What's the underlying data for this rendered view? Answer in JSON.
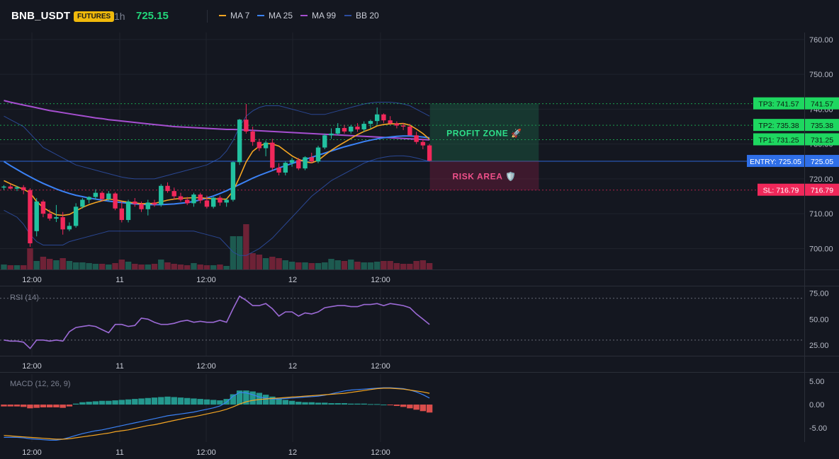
{
  "header": {
    "symbol": "BNB_USDT",
    "badge": "FUTURES",
    "timeframe": "1h",
    "price": "725.15",
    "legend": [
      {
        "label": "MA 7",
        "color": "#f5a623"
      },
      {
        "label": "MA 25",
        "color": "#3b82f6"
      },
      {
        "label": "MA 99",
        "color": "#a64fd0"
      },
      {
        "label": "BB 20",
        "color": "#2c4da0"
      }
    ]
  },
  "colors": {
    "up": "#22c1a0",
    "down": "#f0285a",
    "price": "#22d67a",
    "badge_bg": "#f0b90b",
    "tp": "#1ed760",
    "entry": "#2f6fe8",
    "sl": "#f0285a",
    "rsi": "#9c6ad6",
    "macd_line": "#3b82f6",
    "signal_line": "#f5a623"
  },
  "chart_data": [
    {
      "type": "candlestick",
      "ylim": [
        694,
        762
      ],
      "yticks": [
        "760.00",
        "750.00",
        "740.00",
        "730.00",
        "720.00",
        "710.00",
        "700.00"
      ],
      "ytick_values": [
        760,
        750,
        740,
        730,
        720,
        710,
        700
      ],
      "xticks": [
        "12:00",
        "11",
        "12:00",
        "12",
        "12:00"
      ],
      "levels": [
        {
          "name": "TP3",
          "label": "TP3: 741.57",
          "value_label": "741.57",
          "value": 741.57
        },
        {
          "name": "TP2",
          "label": "TP2: 735.38",
          "value_label": "735.38",
          "value": 735.38
        },
        {
          "name": "TP1",
          "label": "TP1: 731.25",
          "value_label": "731.25",
          "value": 731.25
        },
        {
          "name": "ENTRY",
          "label": "ENTRY: 725.05",
          "value_label": "725.05",
          "value": 725.05
        },
        {
          "name": "SL",
          "label": "SL: 716.79",
          "value_label": "716.79",
          "value": 716.79
        }
      ],
      "zones": [
        {
          "label": "PROFIT ZONE 🚀",
          "from": 725.05,
          "to": 741.57
        },
        {
          "label": "RISK AREA 🛡️",
          "from": 716.79,
          "to": 725.05
        }
      ],
      "candles": [
        [
          717.5,
          718.2,
          716.8,
          717.8
        ],
        [
          717.8,
          718.5,
          717.0,
          717.2
        ],
        [
          717.2,
          718.0,
          716.5,
          717.6
        ],
        [
          717.6,
          718.2,
          715.6,
          716.8
        ],
        [
          716.8,
          717.3,
          700.5,
          701.5
        ],
        [
          705.0,
          714.5,
          703.5,
          713.5
        ],
        [
          713.5,
          714.0,
          709.0,
          710.0
        ],
        [
          710.0,
          711.2,
          708.0,
          708.6
        ],
        [
          708.6,
          712.5,
          707.6,
          709.0
        ],
        [
          709.0,
          710.5,
          704.0,
          705.5
        ],
        [
          705.5,
          707.5,
          705.0,
          706.5
        ],
        [
          706.5,
          713.0,
          706.0,
          712.0
        ],
        [
          712.0,
          714.5,
          711.5,
          714.0
        ],
        [
          714.0,
          715.0,
          713.0,
          714.8
        ],
        [
          714.8,
          717.0,
          714.0,
          716.0
        ],
        [
          716.0,
          716.5,
          713.5,
          714.2
        ],
        [
          714.2,
          716.5,
          713.6,
          715.8
        ],
        [
          715.8,
          716.2,
          711.0,
          711.5
        ],
        [
          711.5,
          713.5,
          707.5,
          708.2
        ],
        [
          708.2,
          714.0,
          707.5,
          713.5
        ],
        [
          713.5,
          714.5,
          712.0,
          712.8
        ],
        [
          712.8,
          713.5,
          710.5,
          711.3
        ],
        [
          711.3,
          714.0,
          709.5,
          713.2
        ],
        [
          713.2,
          714.0,
          712.0,
          712.6
        ],
        [
          712.6,
          718.5,
          712.0,
          718.0
        ],
        [
          718.0,
          719.0,
          716.0,
          716.5
        ],
        [
          716.5,
          717.5,
          714.0,
          715.0
        ],
        [
          715.0,
          716.0,
          713.5,
          714.0
        ],
        [
          714.0,
          714.8,
          712.5,
          713.0
        ],
        [
          713.0,
          716.0,
          712.0,
          715.5
        ],
        [
          715.5,
          716.0,
          713.0,
          713.8
        ],
        [
          713.8,
          715.2,
          711.5,
          712.0
        ],
        [
          712.0,
          714.8,
          711.5,
          714.6
        ],
        [
          714.6,
          715.2,
          712.3,
          713.2
        ],
        [
          713.2,
          714.5,
          712.0,
          714.0
        ],
        [
          714.0,
          725.0,
          713.5,
          724.8
        ],
        [
          724.8,
          737.2,
          724.0,
          737.0
        ],
        [
          737.0,
          741.5,
          733.0,
          733.6
        ],
        [
          733.6,
          735.0,
          729.5,
          730.6
        ],
        [
          730.6,
          731.5,
          728.0,
          728.8
        ],
        [
          728.8,
          731.0,
          726.5,
          730.4
        ],
        [
          730.4,
          731.5,
          722.5,
          723.2
        ],
        [
          723.2,
          724.5,
          721.0,
          721.8
        ],
        [
          721.8,
          725.0,
          721.0,
          724.6
        ],
        [
          724.6,
          726.0,
          723.5,
          725.4
        ],
        [
          725.4,
          726.0,
          722.5,
          723.0
        ],
        [
          723.0,
          726.5,
          722.5,
          726.2
        ],
        [
          726.2,
          727.5,
          724.5,
          725.0
        ],
        [
          725.0,
          729.5,
          724.5,
          729.0
        ],
        [
          729.0,
          733.0,
          728.5,
          732.5
        ],
        [
          732.5,
          734.5,
          731.5,
          733.0
        ],
        [
          733.0,
          736.0,
          732.5,
          734.6
        ],
        [
          734.6,
          735.5,
          733.0,
          733.6
        ],
        [
          733.6,
          735.5,
          733.0,
          735.0
        ],
        [
          735.0,
          736.0,
          733.5,
          734.2
        ],
        [
          734.2,
          736.5,
          733.5,
          735.8
        ],
        [
          735.8,
          737.0,
          734.5,
          736.6
        ],
        [
          736.6,
          740.5,
          735.5,
          738.5
        ],
        [
          738.5,
          738.8,
          736.0,
          736.8
        ],
        [
          736.8,
          738.0,
          735.5,
          735.9
        ],
        [
          735.9,
          736.5,
          734.5,
          735.3
        ],
        [
          735.3,
          736.0,
          734.0,
          735.0
        ],
        [
          735.0,
          735.8,
          732.5,
          732.5
        ],
        [
          732.5,
          733.5,
          730.0,
          730.6
        ],
        [
          730.6,
          731.5,
          728.5,
          729.6
        ],
        [
          729.6,
          730.0,
          725.0,
          725.2
        ]
      ],
      "volumes": [
        7,
        6,
        6,
        6,
        30,
        12,
        18,
        15,
        13,
        16,
        12,
        10,
        10,
        9,
        8,
        8,
        7,
        9,
        14,
        11,
        8,
        7,
        7,
        8,
        14,
        10,
        8,
        7,
        6,
        9,
        7,
        6,
        6,
        7,
        5,
        47,
        47,
        64,
        23,
        21,
        16,
        18,
        16,
        13,
        11,
        10,
        10,
        9,
        9,
        10,
        15,
        13,
        12,
        14,
        11,
        10,
        10,
        11,
        12,
        12,
        9,
        8,
        8,
        12,
        13,
        9
      ],
      "ma7": [
        719.5,
        718.6,
        717.8,
        717.0,
        716.0,
        713.5,
        711.8,
        710.6,
        709.7,
        709.5,
        709.8,
        710.8,
        711.8,
        712.6,
        713.2,
        713.7,
        714.2,
        714.0,
        713.6,
        713.3,
        713.1,
        712.9,
        712.9,
        713.0,
        713.4,
        713.9,
        714.2,
        714.4,
        714.5,
        714.6,
        714.6,
        714.4,
        714.3,
        714.2,
        714.2,
        716.5,
        720.5,
        724.9,
        727.9,
        729.4,
        730.2,
        730.0,
        729.4,
        728.0,
        726.6,
        725.6,
        724.9,
        724.6,
        725.3,
        726.8,
        728.2,
        729.4,
        730.5,
        731.6,
        732.7,
        733.6,
        734.3,
        735.2,
        735.6,
        735.8,
        735.8,
        735.9,
        735.4,
        734.3,
        733.0,
        731.4
      ],
      "ma25": [
        725.0,
        723.8,
        722.7,
        721.6,
        720.6,
        719.6,
        718.7,
        717.9,
        717.1,
        716.4,
        715.8,
        715.3,
        714.9,
        714.5,
        714.2,
        713.9,
        713.6,
        713.4,
        713.2,
        713.0,
        712.8,
        712.7,
        712.6,
        712.6,
        712.6,
        712.7,
        712.8,
        713.0,
        713.2,
        713.5,
        714.0,
        714.5,
        715.1,
        715.8,
        716.6,
        717.5,
        718.4,
        719.3,
        720.2,
        721.0,
        721.7,
        722.4,
        723.1,
        723.8,
        724.4,
        725.0,
        725.6,
        726.2,
        726.8,
        727.4,
        728.0,
        728.6,
        729.2,
        729.7,
        730.2,
        730.7,
        731.1,
        731.5,
        731.8,
        732.0,
        732.2,
        732.3,
        732.3,
        732.2,
        732.0,
        731.8
      ],
      "ma99": [
        742.5,
        742.0,
        741.6,
        741.2,
        740.8,
        740.4,
        740.0,
        739.6,
        739.3,
        739.0,
        738.7,
        738.4,
        738.1,
        737.8,
        737.5,
        737.3,
        737.0,
        736.8,
        736.6,
        736.4,
        736.2,
        736.0,
        735.8,
        735.6,
        735.4,
        735.2,
        735.0,
        734.9,
        734.8,
        734.7,
        734.6,
        734.5,
        734.4,
        734.3,
        734.2,
        734.2,
        734.1,
        734.0,
        733.9,
        733.8,
        733.7,
        733.6,
        733.5,
        733.4,
        733.3,
        733.2,
        733.1,
        733.0,
        732.9,
        732.8,
        732.7,
        732.6,
        732.5,
        732.4,
        732.3,
        732.2,
        732.1,
        732.0,
        731.9,
        731.8,
        731.7,
        731.6,
        731.5,
        731.4,
        731.3,
        731.2
      ],
      "bb_upper": [
        738,
        737,
        736,
        735,
        733,
        731,
        729,
        728,
        727,
        726,
        725,
        724,
        723.5,
        723,
        722.5,
        722,
        721.5,
        721,
        720.5,
        720.2,
        720,
        720,
        720,
        720,
        720.5,
        721,
        721.5,
        722,
        722.5,
        723,
        723.5,
        724,
        725,
        726,
        728,
        731,
        735,
        738,
        739.5,
        740.5,
        741,
        741,
        741,
        740.5,
        740,
        739.5,
        739,
        738.5,
        738.5,
        738.5,
        739,
        739.5,
        740,
        740.5,
        741,
        741.5,
        741.8,
        742,
        742,
        742,
        741.8,
        741.5,
        741,
        740,
        739,
        738
      ],
      "bb_lower": [
        711,
        710,
        709,
        707,
        704,
        702,
        701,
        701,
        701,
        701,
        702,
        702.5,
        703,
        703.5,
        704,
        704.5,
        705,
        705,
        705,
        705,
        705,
        705,
        705,
        705,
        705,
        705,
        705,
        705,
        705,
        705,
        704.5,
        704,
        703.5,
        703,
        701,
        699,
        698,
        698,
        699,
        700,
        701.5,
        703,
        705,
        707,
        709,
        711,
        713,
        715,
        716.5,
        718,
        719.5,
        720.5,
        721.5,
        722.5,
        723.5,
        724.5,
        725.2,
        725.8,
        726.2,
        726.5,
        726.6,
        726.6,
        726.4,
        726.0,
        725.5,
        725.0
      ]
    },
    {
      "type": "line",
      "title": "RSI (14)",
      "ylim": [
        15,
        80
      ],
      "yticks": [
        "75.00",
        "50.00",
        "25.00"
      ],
      "ytick_values": [
        75,
        50,
        25
      ],
      "hlines": [
        70,
        30
      ],
      "xticks": [
        "12:00",
        "11",
        "12:00",
        "12",
        "12:00"
      ],
      "values": [
        30,
        29,
        29,
        28,
        22,
        30,
        30,
        29,
        30,
        29,
        38,
        42,
        43,
        44,
        43,
        40,
        37,
        45,
        45,
        43,
        44,
        51,
        50,
        47,
        45,
        45,
        46,
        48,
        49,
        47,
        48,
        47,
        47,
        49,
        47,
        60,
        72,
        68,
        63,
        63,
        65,
        60,
        53,
        57,
        57,
        53,
        56,
        55,
        57,
        61,
        62,
        63,
        63,
        62,
        62,
        64,
        64,
        65,
        63,
        65,
        64,
        63,
        61,
        55,
        50,
        45
      ]
    },
    {
      "type": "bar-line",
      "title": "MACD (12, 26, 9)",
      "ylim": [
        -8,
        6.5
      ],
      "yticks": [
        "5.00",
        "0.00",
        "-5.00"
      ],
      "ytick_values": [
        5,
        0,
        -5
      ],
      "xticks": [
        "12:00",
        "11",
        "12:00",
        "12",
        "12:00"
      ],
      "histogram": [
        -0.4,
        -0.4,
        -0.4,
        -0.5,
        -0.8,
        -0.7,
        -0.6,
        -0.6,
        -0.6,
        -0.7,
        -0.4,
        0.2,
        0.5,
        0.6,
        0.7,
        0.8,
        0.8,
        0.9,
        1.0,
        1.1,
        1.2,
        1.3,
        1.4,
        1.5,
        1.6,
        1.7,
        1.6,
        1.5,
        1.4,
        1.3,
        1.2,
        1.1,
        1.0,
        0.9,
        1.2,
        2.2,
        3.0,
        3.0,
        2.8,
        2.5,
        2.1,
        1.7,
        1.3,
        1.0,
        0.8,
        0.6,
        0.5,
        0.5,
        0.4,
        0.4,
        0.3,
        0.3,
        0.3,
        0.2,
        0.2,
        0.2,
        0.1,
        0.1,
        0.0,
        -0.1,
        -0.3,
        -0.5,
        -0.8,
        -1.1,
        -1.4,
        -1.7
      ],
      "macd": [
        -7.0,
        -7.0,
        -7.0,
        -7.1,
        -7.3,
        -7.4,
        -7.5,
        -7.6,
        -7.6,
        -7.4,
        -7.0,
        -6.6,
        -6.2,
        -5.9,
        -5.6,
        -5.4,
        -5.1,
        -4.8,
        -4.5,
        -4.2,
        -3.9,
        -3.6,
        -3.3,
        -3.0,
        -2.7,
        -2.4,
        -2.2,
        -2.0,
        -1.8,
        -1.6,
        -1.3,
        -1.0,
        -0.7,
        -0.3,
        0.5,
        1.8,
        2.6,
        2.5,
        2.1,
        1.6,
        1.4,
        1.2,
        1.2,
        1.3,
        1.4,
        1.5,
        1.6,
        1.7,
        1.8,
        2.0,
        2.3,
        2.6,
        2.9,
        3.1,
        3.2,
        3.3,
        3.4,
        3.5,
        3.6,
        3.6,
        3.5,
        3.4,
        3.1,
        2.7,
        2.1,
        1.4
      ],
      "signal": [
        -6.6,
        -6.7,
        -6.8,
        -6.9,
        -7.0,
        -7.1,
        -7.2,
        -7.3,
        -7.4,
        -7.4,
        -7.3,
        -7.1,
        -6.9,
        -6.7,
        -6.5,
        -6.3,
        -6.1,
        -5.8,
        -5.6,
        -5.4,
        -5.1,
        -4.8,
        -4.5,
        -4.3,
        -4.0,
        -3.7,
        -3.4,
        -3.1,
        -2.8,
        -2.6,
        -2.3,
        -2.0,
        -1.7,
        -1.4,
        -1.0,
        -0.5,
        0.1,
        0.6,
        0.9,
        1.1,
        1.2,
        1.3,
        1.4,
        1.5,
        1.6,
        1.7,
        1.8,
        1.9,
        2.0,
        2.1,
        2.2,
        2.3,
        2.4,
        2.6,
        2.8,
        3.0,
        3.2,
        3.4,
        3.5,
        3.5,
        3.4,
        3.3,
        3.1,
        2.9,
        2.7,
        2.4
      ]
    }
  ]
}
